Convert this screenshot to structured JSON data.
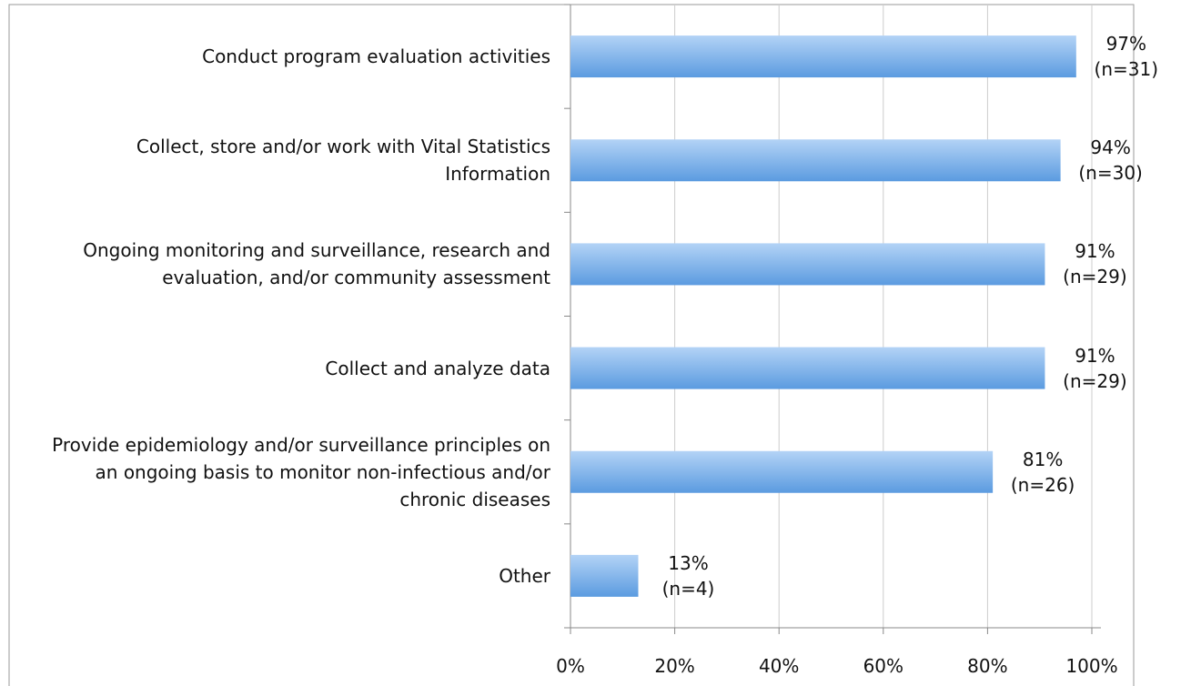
{
  "chart_data": {
    "type": "bar",
    "orientation": "horizontal",
    "categories": [
      "Conduct program evaluation activities",
      "Collect,  store and/or work with Vital Statistics Information",
      "Ongoing monitoring and surveillance, research and evaluation, and/or community assessment",
      "Collect and analyze data",
      "Provide epidemiology and/or surveillance principles on an ongoing basis to monitor non-infectious and/or chronic diseases",
      "Other"
    ],
    "values": [
      97,
      94,
      91,
      91,
      81,
      13
    ],
    "value_labels": [
      "97%\n(n=31)",
      "94%\n(n=30)",
      "91%\n(n=29)",
      "91%\n(n=29)",
      "81%\n(n=26)",
      "13%\n(n=4)"
    ],
    "color": "#5b9be0",
    "xlim": [
      0,
      100
    ],
    "xticks": [
      {
        "value": 0,
        "label": "0%"
      },
      {
        "value": 20,
        "label": "20%"
      },
      {
        "value": 40,
        "label": "40%"
      },
      {
        "value": 60,
        "label": "60%"
      },
      {
        "value": 80,
        "label": "80%"
      },
      {
        "value": 100,
        "label": "100%"
      }
    ],
    "grid": true
  }
}
